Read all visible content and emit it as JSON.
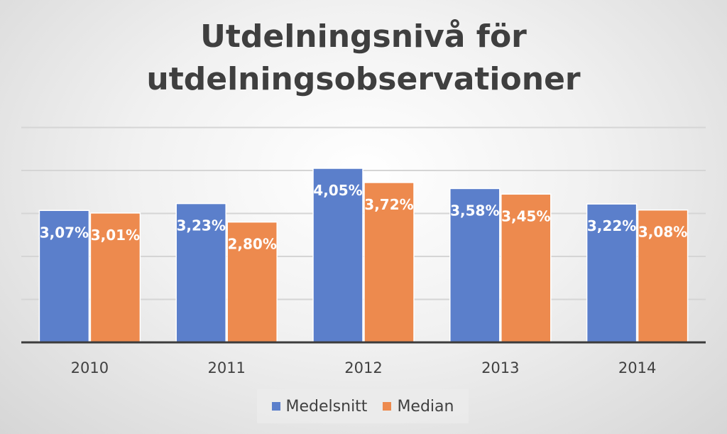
{
  "title_lines": [
    "Utdelningsnivå för",
    "utdelningsobservationer"
  ],
  "colors": {
    "series_0": "#5b7fcb",
    "series_1": "#ed8a4e",
    "gridline": "#d5d5d5",
    "axis": "#3c3c3c",
    "label_text": "#ffffff",
    "tick_text": "#404040"
  },
  "chart_data": {
    "type": "bar",
    "title": "Utdelningsnivå för utdelningsobservationer",
    "categories": [
      "2010",
      "2011",
      "2012",
      "2013",
      "2014"
    ],
    "series": [
      {
        "name": "Medelsnitt",
        "values": [
          3.07,
          3.23,
          4.05,
          3.58,
          3.22
        ],
        "labels": [
          "3,07%",
          "3,23%",
          "4,05%",
          "3,58%",
          "3,22%"
        ]
      },
      {
        "name": "Median",
        "values": [
          3.01,
          2.8,
          3.72,
          3.45,
          3.08
        ],
        "labels": [
          "3,01%",
          "2,80%",
          "3,72%",
          "3,45%",
          "3,08%"
        ]
      }
    ],
    "ylim": [
      0,
      5
    ],
    "y_gridline_step": 1,
    "y_tick_labels_visible": false,
    "grid": true,
    "legend_position": "bottom",
    "data_labels": "inside-top"
  }
}
